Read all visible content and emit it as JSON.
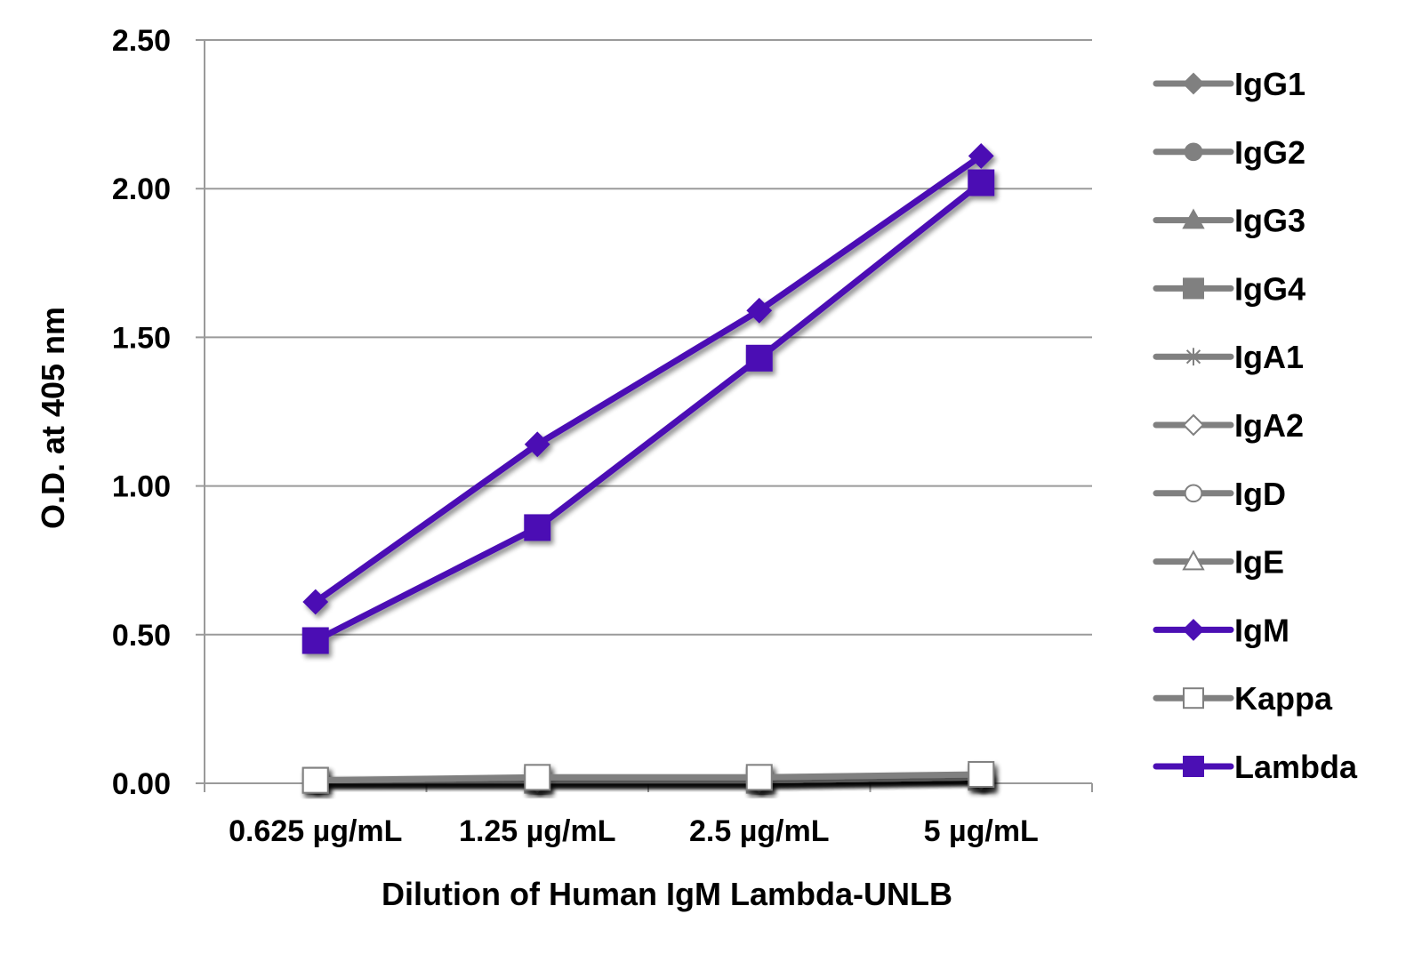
{
  "chart_data": {
    "type": "line",
    "title": "",
    "xlabel": "Dilution of Human IgM Lambda-UNLB",
    "ylabel": "O.D. at 405 nm",
    "categories": [
      "0.625 µg/mL",
      "1.25 µg/mL",
      "2.5 µg/mL",
      "5 µg/mL"
    ],
    "y_ticks": [
      "0.00",
      "0.50",
      "1.00",
      "1.50",
      "2.00",
      "2.50"
    ],
    "ylim": [
      0,
      2.5
    ],
    "grid": "horizontal",
    "legend_position": "right",
    "series": [
      {
        "name": "IgG1",
        "values": [
          0.01,
          0.01,
          0.01,
          0.02
        ],
        "color": "#808080",
        "marker": "diamond",
        "filled": true
      },
      {
        "name": "IgG2",
        "values": [
          0.01,
          0.01,
          0.01,
          0.02
        ],
        "color": "#808080",
        "marker": "circle",
        "filled": true
      },
      {
        "name": "IgG3",
        "values": [
          0.01,
          0.01,
          0.01,
          0.02
        ],
        "color": "#808080",
        "marker": "triangle",
        "filled": true
      },
      {
        "name": "IgG4",
        "values": [
          0.01,
          0.01,
          0.01,
          0.02
        ],
        "color": "#808080",
        "marker": "square",
        "filled": true
      },
      {
        "name": "IgA1",
        "values": [
          0.01,
          0.01,
          0.01,
          0.02
        ],
        "color": "#808080",
        "marker": "asterisk",
        "filled": false
      },
      {
        "name": "IgA2",
        "values": [
          0.01,
          0.01,
          0.01,
          0.02
        ],
        "color": "#808080",
        "marker": "diamond-open",
        "filled": false
      },
      {
        "name": "IgD",
        "values": [
          0.01,
          0.01,
          0.01,
          0.02
        ],
        "color": "#808080",
        "marker": "circle-open",
        "filled": false
      },
      {
        "name": "IgE",
        "values": [
          0.01,
          0.01,
          0.01,
          0.02
        ],
        "color": "#808080",
        "marker": "triangle-open",
        "filled": false
      },
      {
        "name": "IgM",
        "values": [
          0.61,
          1.14,
          1.59,
          2.11
        ],
        "color": "#4b0fb4",
        "marker": "diamond",
        "filled": true
      },
      {
        "name": "Kappa",
        "values": [
          0.01,
          0.02,
          0.02,
          0.03
        ],
        "color": "#808080",
        "marker": "square-open",
        "filled": false
      },
      {
        "name": "Lambda",
        "values": [
          0.48,
          0.86,
          1.43,
          2.02
        ],
        "color": "#4b0fb4",
        "marker": "square",
        "filled": true
      }
    ]
  }
}
